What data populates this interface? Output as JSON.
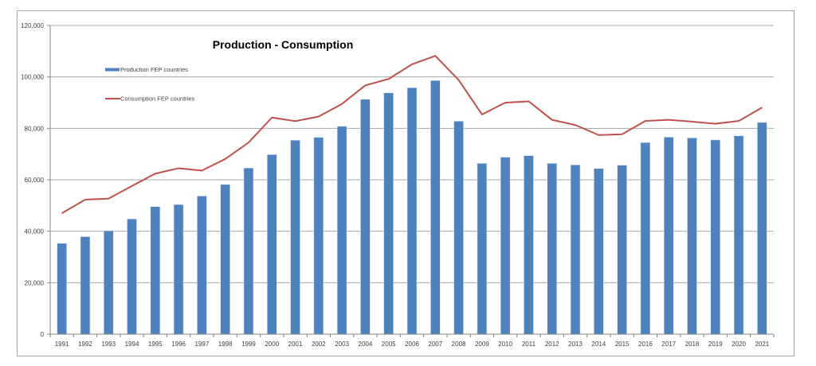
{
  "chart_data": {
    "type": "bar",
    "title": "Production - Consumption",
    "xlabel": "",
    "ylabel": "",
    "ylim": [
      0,
      120000
    ],
    "yticks": [
      0,
      20000,
      40000,
      60000,
      80000,
      100000,
      120000
    ],
    "ytick_labels": [
      "0",
      "20,000",
      "40,000",
      "60,000",
      "80,000",
      "100,000",
      "120,000"
    ],
    "grid": true,
    "legend_position": "top-left",
    "categories": [
      "1991",
      "1992",
      "1993",
      "1994",
      "1995",
      "1996",
      "1997",
      "1998",
      "1999",
      "2000",
      "2001",
      "2002",
      "2003",
      "2004",
      "2005",
      "2006",
      "2007",
      "2008",
      "2009",
      "2010",
      "2011",
      "2012",
      "2013",
      "2014",
      "2015",
      "2016",
      "2017",
      "2018",
      "2019",
      "2020",
      "2021"
    ],
    "series": [
      {
        "name": "Production FEP countries",
        "type": "bar",
        "color": "#4F81BD",
        "values": [
          35300,
          37900,
          40200,
          44800,
          49600,
          50400,
          53700,
          58200,
          64600,
          69800,
          75400,
          76500,
          80800,
          91300,
          93800,
          95800,
          98600,
          82800,
          66400,
          68800,
          69400,
          66400,
          65800,
          64400,
          65700,
          74500,
          76600,
          76300,
          75500,
          77100,
          82300
        ]
      },
      {
        "name": "Consumption FEP countries",
        "type": "line",
        "color": "#C0504D",
        "values": [
          47000,
          52300,
          52700,
          57600,
          62400,
          64500,
          63600,
          68100,
          74500,
          84200,
          82800,
          84600,
          89500,
          96700,
          99200,
          104900,
          108200,
          98800,
          85400,
          90000,
          90500,
          83300,
          81300,
          77400,
          77700,
          82900,
          83300,
          82600,
          81800,
          82900,
          88100
        ]
      }
    ]
  }
}
